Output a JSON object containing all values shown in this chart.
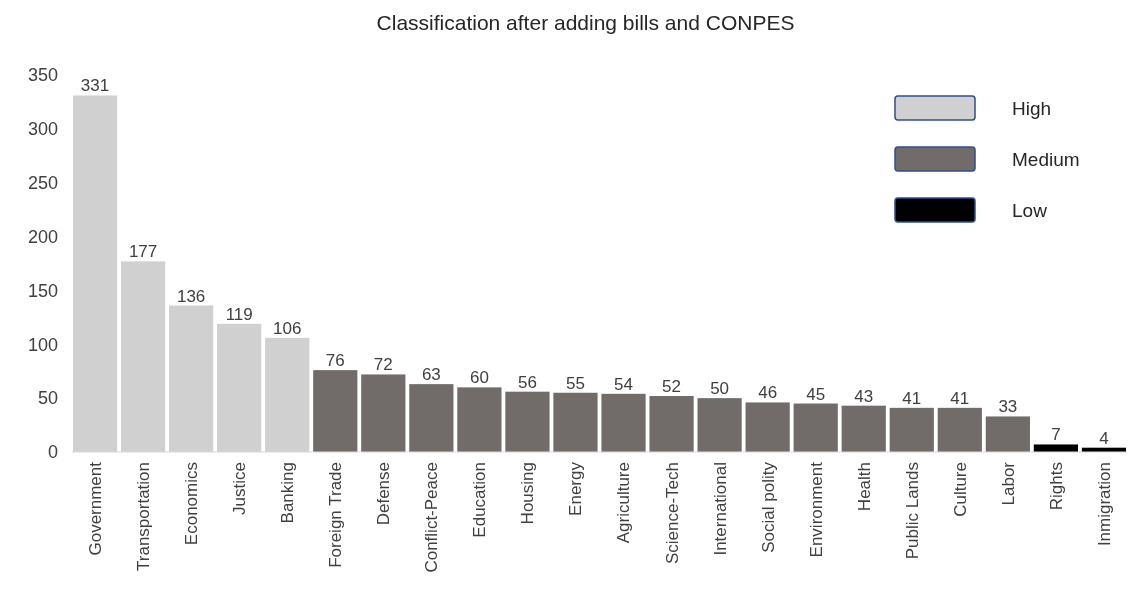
{
  "chart_data": {
    "type": "bar",
    "title": "Classification after adding bills and CONPES",
    "categories": [
      "Government",
      "Transportation",
      "Economics",
      "Justice",
      "Banking",
      "Foreign Trade",
      "Defense",
      "Conflict-Peace",
      "Education",
      "Housing",
      "Energy",
      "Agriculture",
      "Science-Tech",
      "International",
      "Social polity",
      "Environment",
      "Health",
      "Public Lands",
      "Culture",
      "Labor",
      "Rights",
      "Inmigration"
    ],
    "series": [
      {
        "name": "High",
        "color": "#d0d0d0",
        "values": [
          331,
          177,
          136,
          119,
          106,
          null,
          null,
          null,
          null,
          null,
          null,
          null,
          null,
          null,
          null,
          null,
          null,
          null,
          null,
          null,
          null,
          null
        ]
      },
      {
        "name": "Medium",
        "color": "#716b69",
        "values": [
          null,
          null,
          null,
          null,
          null,
          76,
          72,
          63,
          60,
          56,
          55,
          54,
          52,
          50,
          46,
          45,
          43,
          41,
          41,
          33,
          null,
          null
        ]
      },
      {
        "name": "Low",
        "color": "#000000",
        "values": [
          null,
          null,
          null,
          null,
          null,
          null,
          null,
          null,
          null,
          null,
          null,
          null,
          null,
          null,
          null,
          null,
          null,
          null,
          null,
          null,
          7,
          4
        ]
      }
    ],
    "ylim": [
      0,
      350
    ],
    "yticks": [
      0,
      50,
      100,
      150,
      200,
      250,
      300,
      350
    ],
    "data_labels": true,
    "legend": "top right",
    "grid": false
  }
}
